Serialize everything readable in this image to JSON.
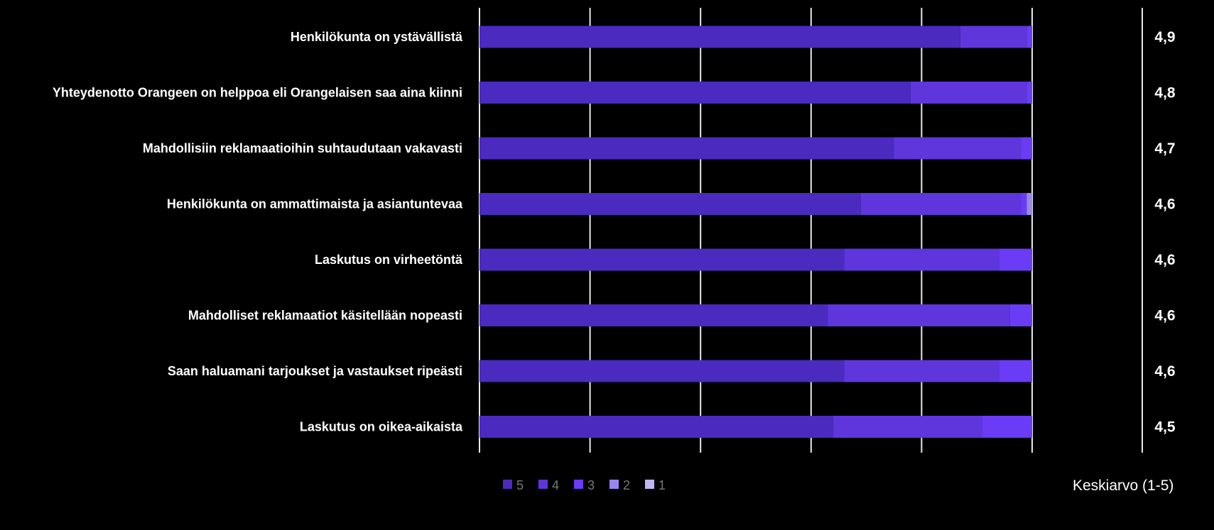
{
  "chart_data": {
    "type": "bar",
    "orientation": "horizontal",
    "stacked": true,
    "unit": "percent",
    "xlim": [
      0,
      100
    ],
    "grid": true,
    "categories": [
      "Henkilökunta on ystävällistä",
      "Yhteydenotto Orangeen on helppoa eli Orangelaisen saa aina kiinni",
      "Mahdollisiin reklamaatioihin suhtaudutaan vakavasti",
      "Henkilökunta on ammattimaista ja asiantuntevaa",
      "Laskutus on virheetöntä",
      "Mahdolliset reklamaatiot käsitellään nopeasti",
      "Saan haluamani tarjoukset ja vastaukset ripeästi",
      "Laskutus on oikea-aikaista"
    ],
    "series": [
      {
        "name": "5",
        "color": "#4b2abf",
        "values": [
          87,
          78,
          75,
          69,
          66,
          63,
          66,
          64
        ]
      },
      {
        "name": "4",
        "color": "#5e36dc",
        "values": [
          12,
          21,
          23,
          29,
          28,
          33,
          28,
          27
        ]
      },
      {
        "name": "3",
        "color": "#6a3cf5",
        "values": [
          1,
          1,
          2,
          1,
          6,
          4,
          6,
          9
        ]
      },
      {
        "name": "2",
        "color": "#9b86f0",
        "values": [
          0,
          0,
          0,
          1,
          0,
          0,
          0,
          0
        ]
      },
      {
        "name": "1",
        "color": "#c0b4f5",
        "values": [
          0,
          0,
          0,
          0,
          0,
          0,
          0,
          0
        ]
      }
    ],
    "averages": [
      "4,9",
      "4,8",
      "4,7",
      "4,6",
      "4,6",
      "4,6",
      "4,6",
      "4,5"
    ],
    "average_label": "Keskiarvo (1-5)",
    "legend_position": "bottom"
  }
}
